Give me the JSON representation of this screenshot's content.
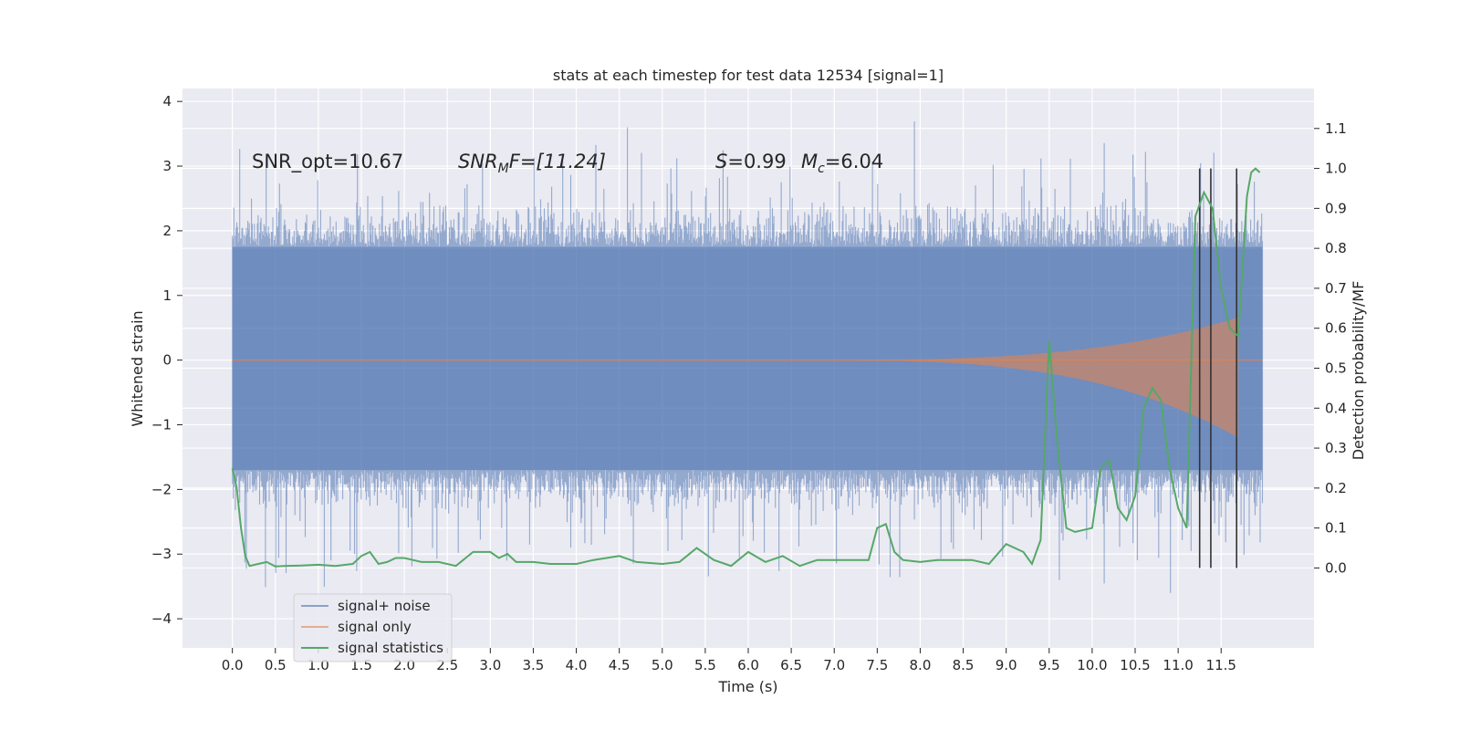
{
  "chart_data": {
    "type": "line",
    "title": "stats at each timestep for test data 12534 [signal=1]",
    "xlabel": "Time (s)",
    "ylabel": "Whitened strain",
    "y2label": "Detection probability/MF",
    "xlim": [
      -0.58,
      12.58
    ],
    "ylim": [
      -4.45,
      4.2
    ],
    "y2lim": [
      -0.2,
      1.2
    ],
    "x_ticks": [
      "0.0",
      "0.5",
      "1.0",
      "1.5",
      "2.0",
      "2.5",
      "3.0",
      "3.5",
      "4.0",
      "4.5",
      "5.0",
      "5.5",
      "6.0",
      "6.5",
      "7.0",
      "7.5",
      "8.0",
      "8.5",
      "9.0",
      "9.5",
      "10.0",
      "10.5",
      "11.0",
      "11.5"
    ],
    "y_ticks": [
      "−4",
      "−3",
      "−2",
      "−1",
      "0",
      "1",
      "2",
      "3",
      "4"
    ],
    "y2_ticks": [
      "0.0",
      "0.1",
      "0.2",
      "0.3",
      "0.4",
      "0.5",
      "0.6",
      "0.7",
      "0.8",
      "0.9",
      "1.0",
      "1.1"
    ],
    "grid": true,
    "legend_position": "lower-left",
    "annotations": {
      "snr_opt": "SNR_opt=10.67",
      "snr_mf": "SNR",
      "snr_mf_sub": "M",
      "snr_mf_rest": "F=[11.24]",
      "s_label": "S",
      "s_rest": "=0.99",
      "mc_label": "M",
      "mc_sub": "c",
      "mc_rest": "=6.04"
    },
    "series": [
      {
        "name": "signal+ noise",
        "color": "#4c72b0",
        "description_values": "noise band roughly within ±1.75 strain, peaks to about 3.8 / −4.1",
        "t_start": 0.0,
        "t_end": 11.98,
        "band_upper": 1.75,
        "band_lower": -1.7
      },
      {
        "name": "signal only",
        "color": "#dd8452",
        "chirp_start": 6.5,
        "chirp_end": 11.7,
        "amp_max": 1.2
      },
      {
        "name": "signal statistics",
        "color": "#55a868",
        "x": [
          0.0,
          0.05,
          0.1,
          0.15,
          0.2,
          0.3,
          0.4,
          0.5,
          0.6,
          0.8,
          1.0,
          1.2,
          1.4,
          1.5,
          1.6,
          1.7,
          1.8,
          1.9,
          2.0,
          2.1,
          2.2,
          2.4,
          2.6,
          2.8,
          3.0,
          3.1,
          3.2,
          3.3,
          3.5,
          3.7,
          4.0,
          4.2,
          4.5,
          4.7,
          5.0,
          5.2,
          5.4,
          5.6,
          5.8,
          6.0,
          6.2,
          6.4,
          6.6,
          6.8,
          7.0,
          7.2,
          7.4,
          7.5,
          7.6,
          7.7,
          7.8,
          8.0,
          8.2,
          8.4,
          8.6,
          8.8,
          9.0,
          9.2,
          9.3,
          9.4,
          9.5,
          9.6,
          9.7,
          9.8,
          10.0,
          10.1,
          10.2,
          10.3,
          10.4,
          10.5,
          10.6,
          10.7,
          10.8,
          10.9,
          11.0,
          11.1,
          11.2,
          11.3,
          11.4,
          11.5,
          11.6,
          11.7,
          11.8,
          11.85,
          11.9,
          11.95
        ],
        "values": [
          0.25,
          0.2,
          0.1,
          0.03,
          0.005,
          0.01,
          0.015,
          0.004,
          0.005,
          0.006,
          0.008,
          0.005,
          0.01,
          0.03,
          0.04,
          0.01,
          0.015,
          0.025,
          0.025,
          0.02,
          0.015,
          0.015,
          0.005,
          0.04,
          0.04,
          0.025,
          0.035,
          0.015,
          0.015,
          0.01,
          0.01,
          0.02,
          0.03,
          0.015,
          0.01,
          0.015,
          0.05,
          0.02,
          0.005,
          0.04,
          0.015,
          0.03,
          0.005,
          0.02,
          0.02,
          0.02,
          0.02,
          0.1,
          0.11,
          0.04,
          0.02,
          0.015,
          0.02,
          0.02,
          0.02,
          0.01,
          0.06,
          0.04,
          0.01,
          0.07,
          0.57,
          0.3,
          0.1,
          0.09,
          0.1,
          0.25,
          0.27,
          0.15,
          0.12,
          0.18,
          0.4,
          0.45,
          0.42,
          0.25,
          0.15,
          0.1,
          0.88,
          0.94,
          0.9,
          0.7,
          0.6,
          0.58,
          0.93,
          0.99,
          1.0,
          0.99
        ]
      }
    ],
    "vertical_lines": {
      "color": "#333333",
      "x": [
        11.25,
        11.38,
        11.68
      ],
      "y2_range": [
        0.0,
        1.0
      ]
    }
  }
}
